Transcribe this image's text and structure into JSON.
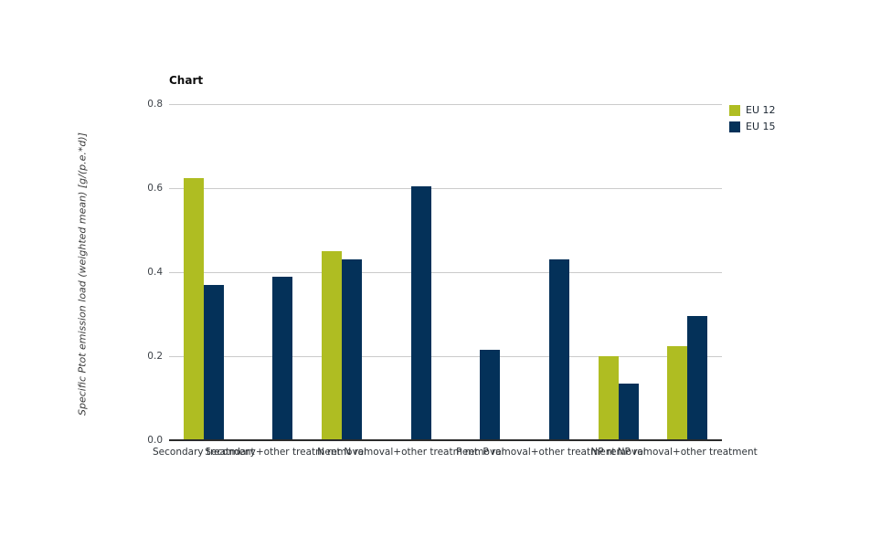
{
  "chart": {
    "title": "Chart",
    "y_axis_label": "Specific Ptot emission load (weighted mean) [g/(p.e.*d)]"
  },
  "chart_data": {
    "type": "bar",
    "title": "Chart",
    "xlabel": "",
    "ylabel": "Specific Ptot emission load (weighted mean) [g/(p.e.*d)]",
    "ylim": [
      0,
      0.8
    ],
    "yticks": [
      0,
      0.2,
      0.4,
      0.6,
      0.8
    ],
    "ytick_labels": [
      "0.0",
      "0.2",
      "0.4",
      "0.6",
      "0.8"
    ],
    "grid": true,
    "legend_position": "top-right",
    "categories": [
      "Secondary treatment",
      "Secondary+other treatment",
      "N removal",
      "N removal+other treatment",
      "P removal",
      "P removal+other treatment",
      "NP removal",
      "NP removal+other treatment"
    ],
    "series": [
      {
        "name": "EU 12",
        "color": "#afbd22",
        "values": [
          0.625,
          null,
          0.45,
          null,
          null,
          null,
          0.2,
          0.225
        ]
      },
      {
        "name": "EU 15",
        "color": "#043159",
        "values": [
          0.37,
          0.39,
          0.43,
          0.605,
          0.215,
          0.43,
          0.135,
          0.295
        ]
      }
    ]
  },
  "colors": {
    "background": "#ffffff",
    "gridline": "#cbcbcb",
    "axis_line": "#2b2b2b",
    "eu12_green": "#afbd22",
    "eu15_navy": "#043159"
  }
}
